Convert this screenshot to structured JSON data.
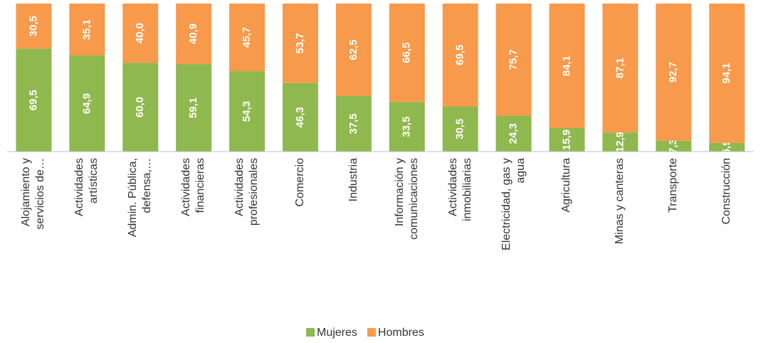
{
  "chart_data": {
    "type": "stacked_bar",
    "categories": [
      "Alojamiento y\nservicios de…",
      "Actividades\nartísticas",
      "Admin. Pública,\ndefensa,…",
      "Actividades\nfinancieras",
      "Actividades\nprofesionales",
      "Comercio",
      "Industria",
      "Información y\ncomunicaciones",
      "Actividades\ninmobiliarias",
      "Electricidad, gas y\nagua",
      "Agricultura",
      "Minas y canteras",
      "Transporte",
      "Construcción"
    ],
    "series": [
      {
        "name": "Mujeres",
        "color": "#8fb84e",
        "values": [
          69.5,
          64.9,
          60.0,
          59.1,
          54.3,
          46.3,
          37.5,
          33.5,
          30.5,
          24.3,
          15.9,
          12.9,
          7.3,
          5.9
        ],
        "value_labels": [
          "69,5",
          "64,9",
          "60,0",
          "59,1",
          "54,3",
          "46,3",
          "37,5",
          "33,5",
          "30,5",
          "24,3",
          "15,9",
          "12,9",
          "7,3",
          "5,9"
        ]
      },
      {
        "name": "Hombres",
        "color": "#f79a4c",
        "values": [
          30.5,
          35.1,
          40.0,
          40.9,
          45.7,
          53.7,
          62.5,
          66.5,
          69.5,
          75.7,
          84.1,
          87.1,
          92.7,
          94.1
        ],
        "value_labels": [
          "30,5",
          "35,1",
          "40,0",
          "40,9",
          "45,7",
          "53,7",
          "62,5",
          "66,5",
          "69,5",
          "75,7",
          "84,1",
          "87,1",
          "92,7",
          "94,1"
        ]
      }
    ],
    "ylim": [
      0,
      100
    ],
    "legend": "bottom"
  }
}
